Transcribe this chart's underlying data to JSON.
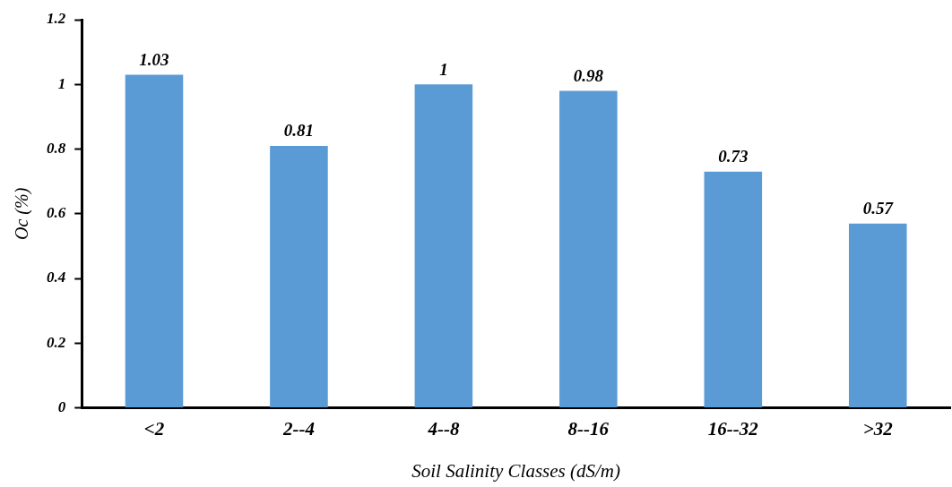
{
  "chart_data": {
    "type": "bar",
    "xlabel": "Soil Salinity Classes (dS/m)",
    "ylabel": "Oc (%)",
    "categories": [
      "<2",
      "2--4",
      "4--8",
      "8--16",
      "16--32",
      ">32"
    ],
    "values": [
      1.03,
      0.81,
      1,
      0.98,
      0.73,
      0.57
    ],
    "color": "#5b9bd5",
    "ylim": [
      0,
      1.2
    ],
    "yticks": [
      0,
      0.2,
      0.4,
      0.6,
      0.8,
      1,
      1.2
    ],
    "grid": false,
    "legend": false,
    "data_labels": true
  }
}
